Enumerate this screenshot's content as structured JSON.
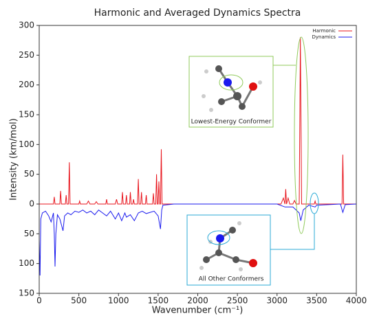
{
  "chart_data": {
    "type": "line",
    "title": "Harmonic and Averaged Dynamics Spectra",
    "xlabel": "Wavenumber (cm⁻¹)",
    "ylabel": "Intensity (km/mol)",
    "xlim": [
      0,
      4000
    ],
    "xticks": [
      0,
      500,
      1000,
      1500,
      2000,
      2500,
      3000,
      3500,
      4000
    ],
    "ylim": [
      -150,
      300
    ],
    "yticks": [
      {
        "value": -150,
        "label": "150"
      },
      {
        "value": -100,
        "label": "100"
      },
      {
        "value": -50,
        "label": "50"
      },
      0,
      50,
      100,
      150,
      200,
      250,
      300
    ],
    "legend": "upper right",
    "series": [
      {
        "name": "Harmonic",
        "color": "#e8141c",
        "x": [
          0,
          180,
          190,
          200,
          260,
          270,
          280,
          330,
          340,
          350,
          370,
          380,
          390,
          500,
          510,
          520,
          600,
          620,
          640,
          700,
          720,
          740,
          840,
          850,
          860,
          960,
          975,
          990,
          1040,
          1050,
          1060,
          1090,
          1100,
          1110,
          1140,
          1150,
          1160,
          1180,
          1190,
          1200,
          1240,
          1250,
          1260,
          1280,
          1290,
          1300,
          1340,
          1350,
          1360,
          1430,
          1440,
          1450,
          1470,
          1480,
          1490,
          1500,
          1510,
          1520,
          1530,
          1540,
          1550,
          3050,
          3080,
          3100,
          3110,
          3120,
          3140,
          3160,
          3200,
          3220,
          3240,
          3280,
          3295,
          3310,
          3470,
          3480,
          3490,
          3820,
          3830,
          3840,
          4000
        ],
        "values": [
          0,
          0,
          12,
          0,
          0,
          22,
          0,
          0,
          15,
          0,
          0,
          70,
          0,
          0,
          5,
          0,
          0,
          5,
          0,
          0,
          4,
          0,
          0,
          8,
          0,
          0,
          8,
          0,
          0,
          20,
          0,
          0,
          15,
          0,
          0,
          20,
          0,
          0,
          8,
          0,
          0,
          42,
          0,
          0,
          20,
          0,
          0,
          15,
          0,
          0,
          18,
          0,
          0,
          50,
          0,
          0,
          38,
          0,
          0,
          92,
          0,
          0,
          10,
          0,
          25,
          0,
          10,
          0,
          0,
          6,
          0,
          0,
          280,
          0,
          0,
          5,
          0,
          0,
          83,
          0,
          0
        ]
      },
      {
        "name": "Dynamics",
        "color": "#1a1aee",
        "x": [
          0,
          10,
          20,
          40,
          80,
          120,
          150,
          180,
          190,
          200,
          210,
          230,
          260,
          280,
          300,
          320,
          360,
          400,
          450,
          500,
          550,
          600,
          650,
          700,
          750,
          800,
          850,
          900,
          960,
          1000,
          1040,
          1080,
          1100,
          1150,
          1200,
          1250,
          1300,
          1350,
          1400,
          1450,
          1500,
          1520,
          1530,
          1545,
          1560,
          1700,
          3000,
          3100,
          3200,
          3280,
          3300,
          3330,
          3400,
          3480,
          3500,
          3800,
          3830,
          3860,
          4000
        ],
        "values": [
          -60,
          -120,
          -25,
          -15,
          -12,
          -20,
          -30,
          -15,
          -50,
          -105,
          -50,
          -18,
          -25,
          -35,
          -45,
          -20,
          -15,
          -18,
          -12,
          -14,
          -10,
          -15,
          -12,
          -18,
          -10,
          -15,
          -20,
          -12,
          -25,
          -15,
          -28,
          -15,
          -22,
          -18,
          -28,
          -15,
          -12,
          -16,
          -14,
          -12,
          -20,
          -35,
          -42,
          -10,
          -2,
          0,
          0,
          -5,
          -5,
          -15,
          -28,
          -10,
          -2,
          -5,
          -2,
          0,
          -14,
          -1,
          0
        ]
      }
    ],
    "annotations": [
      "Lowest-Energy Conformer",
      "All Other Conformers"
    ]
  }
}
